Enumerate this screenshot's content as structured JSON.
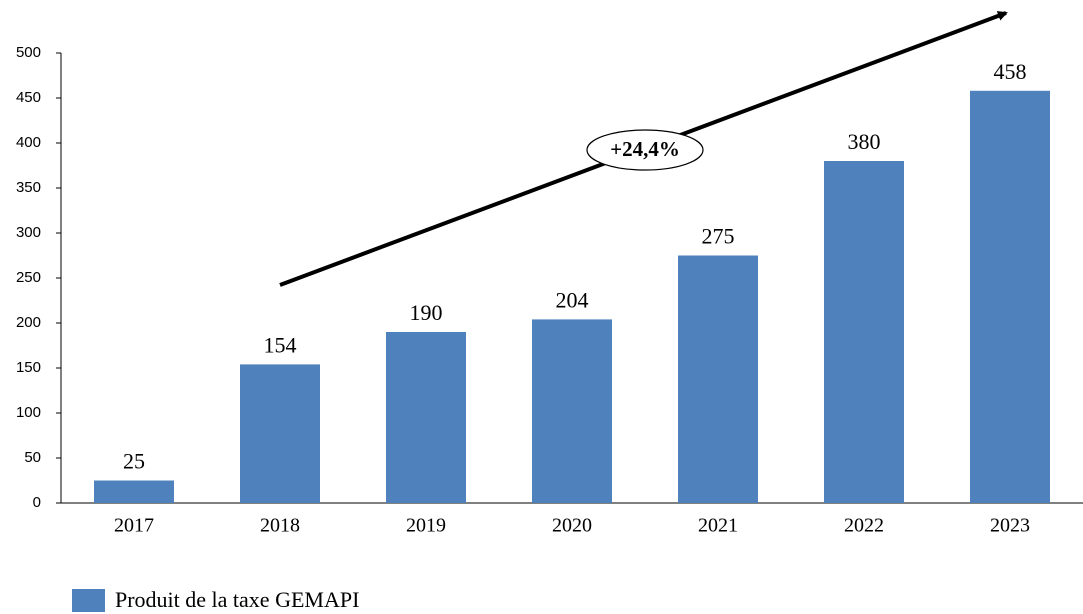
{
  "chart_data": {
    "type": "bar",
    "categories": [
      "2017",
      "2018",
      "2019",
      "2020",
      "2021",
      "2022",
      "2023"
    ],
    "series": [
      {
        "name": "Produit de la taxe GEMAPI",
        "color": "#4f81bd",
        "values": [
          25,
          154,
          190,
          204,
          275,
          380,
          458
        ]
      }
    ],
    "ylim": [
      0,
      500
    ],
    "yticks": [
      0,
      50,
      100,
      150,
      200,
      250,
      300,
      350,
      400,
      450,
      500
    ],
    "grid": false,
    "legend": "bottom-left",
    "annotation": "+24,4%"
  }
}
